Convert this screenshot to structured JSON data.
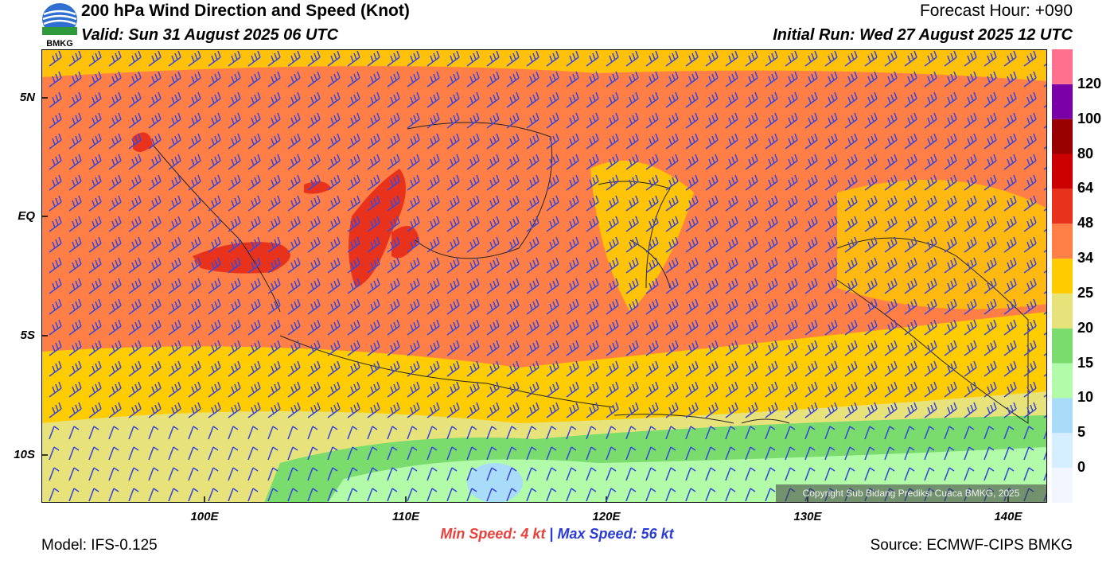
{
  "header": {
    "title": "200 hPa Wind Direction and Speed (Knot)",
    "valid": "Valid: Sun 31 August 2025 06 UTC",
    "forecast_hour": "Forecast Hour: +090",
    "initial_run": "Initial Run: Wed 27 August 2025 12 UTC",
    "logo_text": "BMKG"
  },
  "axes": {
    "lat_labels": [
      "5N",
      "EQ",
      "5S",
      "10S"
    ],
    "lon_labels": [
      "100E",
      "110E",
      "120E",
      "130E",
      "140E"
    ]
  },
  "legend": {
    "levels": [
      "0",
      "5",
      "10",
      "15",
      "20",
      "25",
      "34",
      "48",
      "64",
      "80",
      "100",
      "120"
    ],
    "colors": [
      "#f2f6ff",
      "#d5efff",
      "#a9dcf8",
      "#b2fba8",
      "#79dc6c",
      "#e7e27a",
      "#ffcc00",
      "#ff7f46",
      "#e8321c",
      "#cc0000",
      "#990000",
      "#7a00a8",
      "#ff6f8e"
    ]
  },
  "footer": {
    "model": "Model: IFS-0.125",
    "min_label": "Min Speed:",
    "min_value": "4 kt",
    "separator": "|",
    "max_label": "Max Speed:",
    "max_value": "56 kt",
    "source": "Source: ECMWF-CIPS BMKG",
    "copyright": "Copyright Sub Bidang Prediksi Cuaca BMKG, 2025"
  }
}
